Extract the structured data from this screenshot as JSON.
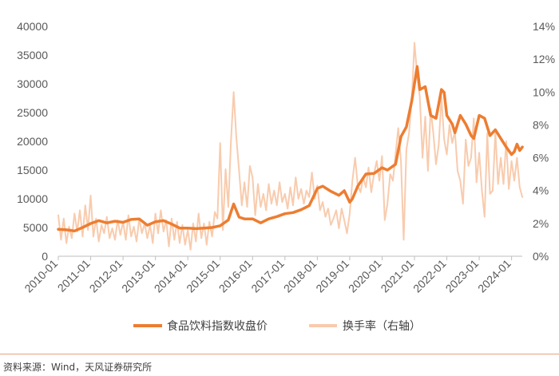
{
  "chart_data": {
    "type": "line",
    "title": "",
    "x": [
      "2010-01",
      "2011-01",
      "2012-01",
      "2013-01",
      "2014-01",
      "2015-01",
      "2016-01",
      "2017-01",
      "2018-01",
      "2019-01",
      "2020-01",
      "2021-01",
      "2022-01",
      "2023-01",
      "2024-01"
    ],
    "x_tick_labels": [
      "2010-01",
      "2011-01",
      "2012-01",
      "2013-01",
      "2014-01",
      "2015-01",
      "2016-01",
      "2017-01",
      "2018-01",
      "2019-01",
      "2020-01",
      "2021-01",
      "2022-01",
      "2023-01",
      "2024-01"
    ],
    "left_axis": {
      "ylim": [
        0,
        40000
      ],
      "ticks": [
        "0",
        "5000",
        "10000",
        "15000",
        "20000",
        "25000",
        "30000",
        "35000",
        "40000"
      ]
    },
    "right_axis": {
      "ylim": [
        0,
        14
      ],
      "ticks": [
        "0%",
        "2%",
        "4%",
        "6%",
        "8%",
        "10%",
        "12%",
        "14%"
      ]
    },
    "series": [
      {
        "name": "食品饮料指数收盘价",
        "axis": "left",
        "color": "#ed7d31",
        "points": [
          [
            "2010-01",
            4700
          ],
          [
            "2010-04",
            4600
          ],
          [
            "2010-07",
            4400
          ],
          [
            "2010-10",
            5000
          ],
          [
            "2011-01",
            5700
          ],
          [
            "2011-04",
            6200
          ],
          [
            "2011-07",
            5800
          ],
          [
            "2011-10",
            6100
          ],
          [
            "2012-01",
            5900
          ],
          [
            "2012-04",
            6400
          ],
          [
            "2012-07",
            6500
          ],
          [
            "2012-10",
            5400
          ],
          [
            "2013-01",
            6000
          ],
          [
            "2013-04",
            6200
          ],
          [
            "2013-07",
            5600
          ],
          [
            "2013-10",
            4900
          ],
          [
            "2014-01",
            4900
          ],
          [
            "2014-04",
            4800
          ],
          [
            "2014-07",
            4900
          ],
          [
            "2014-10",
            5000
          ],
          [
            "2015-01",
            5300
          ],
          [
            "2015-04",
            6300
          ],
          [
            "2015-06",
            9100
          ],
          [
            "2015-08",
            6800
          ],
          [
            "2015-10",
            6500
          ],
          [
            "2016-01",
            6500
          ],
          [
            "2016-04",
            5800
          ],
          [
            "2016-07",
            6500
          ],
          [
            "2016-10",
            6900
          ],
          [
            "2017-01",
            7400
          ],
          [
            "2017-04",
            7600
          ],
          [
            "2017-07",
            8100
          ],
          [
            "2017-10",
            8800
          ],
          [
            "2018-01",
            11800
          ],
          [
            "2018-03",
            12200
          ],
          [
            "2018-06",
            11300
          ],
          [
            "2018-09",
            10600
          ],
          [
            "2018-11",
            11400
          ],
          [
            "2019-01",
            9400
          ],
          [
            "2019-02",
            10000
          ],
          [
            "2019-04",
            12200
          ],
          [
            "2019-07",
            14300
          ],
          [
            "2019-10",
            14400
          ],
          [
            "2020-01",
            15400
          ],
          [
            "2020-03",
            15000
          ],
          [
            "2020-06",
            16000
          ],
          [
            "2020-08",
            20800
          ],
          [
            "2020-10",
            22500
          ],
          [
            "2020-12",
            27000
          ],
          [
            "2021-02",
            33000
          ],
          [
            "2021-03",
            29000
          ],
          [
            "2021-05",
            29500
          ],
          [
            "2021-07",
            24500
          ],
          [
            "2021-09",
            24000
          ],
          [
            "2021-11",
            29000
          ],
          [
            "2021-12",
            28500
          ],
          [
            "2022-01",
            24500
          ],
          [
            "2022-03",
            23000
          ],
          [
            "2022-04",
            21500
          ],
          [
            "2022-06",
            24500
          ],
          [
            "2022-08",
            23000
          ],
          [
            "2022-10",
            21000
          ],
          [
            "2022-11",
            20500
          ],
          [
            "2023-01",
            24500
          ],
          [
            "2023-03",
            24000
          ],
          [
            "2023-05",
            21000
          ],
          [
            "2023-07",
            22000
          ],
          [
            "2023-09",
            20500
          ],
          [
            "2023-11",
            19000
          ],
          [
            "2024-01",
            17700
          ],
          [
            "2024-02",
            18200
          ],
          [
            "2024-03",
            19500
          ],
          [
            "2024-04",
            18400
          ],
          [
            "2024-05",
            19000
          ]
        ]
      },
      {
        "name": "换手率（右轴）",
        "axis": "right",
        "unit": "%",
        "color": "#f8cbad",
        "points": [
          [
            "2010-01",
            2.5
          ],
          [
            "2010-02",
            1.0
          ],
          [
            "2010-03",
            2.3
          ],
          [
            "2010-04",
            0.8
          ],
          [
            "2010-05",
            1.8
          ],
          [
            "2010-06",
            1.1
          ],
          [
            "2010-07",
            2.6
          ],
          [
            "2010-08",
            1.5
          ],
          [
            "2010-09",
            2.8
          ],
          [
            "2010-10",
            1.2
          ],
          [
            "2010-11",
            3.1
          ],
          [
            "2010-12",
            1.6
          ],
          [
            "2011-01",
            3.7
          ],
          [
            "2011-02",
            1.2
          ],
          [
            "2011-03",
            2.3
          ],
          [
            "2011-04",
            0.9
          ],
          [
            "2011-05",
            1.9
          ],
          [
            "2011-06",
            1.4
          ],
          [
            "2011-07",
            2.4
          ],
          [
            "2011-08",
            1.1
          ],
          [
            "2011-09",
            1.7
          ],
          [
            "2011-10",
            1.0
          ],
          [
            "2011-11",
            2.2
          ],
          [
            "2011-12",
            1.3
          ],
          [
            "2012-01",
            2.1
          ],
          [
            "2012-02",
            1.0
          ],
          [
            "2012-03",
            2.5
          ],
          [
            "2012-04",
            1.2
          ],
          [
            "2012-05",
            1.8
          ],
          [
            "2012-06",
            0.9
          ],
          [
            "2012-07",
            2.3
          ],
          [
            "2012-08",
            1.4
          ],
          [
            "2012-09",
            2.0
          ],
          [
            "2012-10",
            1.1
          ],
          [
            "2012-11",
            1.9
          ],
          [
            "2012-12",
            0.8
          ],
          [
            "2013-01",
            2.6
          ],
          [
            "2013-02",
            1.4
          ],
          [
            "2013-03",
            2.8
          ],
          [
            "2013-04",
            1.5
          ],
          [
            "2013-05",
            2.2
          ],
          [
            "2013-06",
            0.6
          ],
          [
            "2013-07",
            2.3
          ],
          [
            "2013-08",
            1.0
          ],
          [
            "2013-09",
            2.1
          ],
          [
            "2013-10",
            0.8
          ],
          [
            "2013-11",
            1.9
          ],
          [
            "2013-12",
            0.7
          ],
          [
            "2014-01",
            1.6
          ],
          [
            "2014-02",
            0.4
          ],
          [
            "2014-03",
            2.0
          ],
          [
            "2014-04",
            0.9
          ],
          [
            "2014-05",
            2.6
          ],
          [
            "2014-06",
            1.1
          ],
          [
            "2014-07",
            2.0
          ],
          [
            "2014-08",
            0.7
          ],
          [
            "2014-09",
            2.1
          ],
          [
            "2014-10",
            1.2
          ],
          [
            "2014-11",
            2.7
          ],
          [
            "2014-12",
            2.3
          ],
          [
            "2015-01",
            6.9
          ],
          [
            "2015-02",
            1.6
          ],
          [
            "2015-03",
            5.3
          ],
          [
            "2015-04",
            3.0
          ],
          [
            "2015-05",
            7.0
          ],
          [
            "2015-06",
            10.0
          ],
          [
            "2015-07",
            7.2
          ],
          [
            "2015-08",
            5.2
          ],
          [
            "2015-09",
            3.1
          ],
          [
            "2015-10",
            4.5
          ],
          [
            "2015-11",
            3.0
          ],
          [
            "2015-12",
            5.5
          ],
          [
            "2016-01",
            4.8
          ],
          [
            "2016-02",
            2.5
          ],
          [
            "2016-03",
            4.4
          ],
          [
            "2016-04",
            3.0
          ],
          [
            "2016-05",
            3.8
          ],
          [
            "2016-06",
            2.8
          ],
          [
            "2016-07",
            4.4
          ],
          [
            "2016-08",
            3.2
          ],
          [
            "2016-09",
            4.0
          ],
          [
            "2016-10",
            3.1
          ],
          [
            "2016-11",
            4.5
          ],
          [
            "2016-12",
            3.3
          ],
          [
            "2017-01",
            3.8
          ],
          [
            "2017-02",
            2.9
          ],
          [
            "2017-03",
            4.2
          ],
          [
            "2017-04",
            3.1
          ],
          [
            "2017-05",
            4.8
          ],
          [
            "2017-06",
            3.5
          ],
          [
            "2017-07",
            4.1
          ],
          [
            "2017-08",
            3.2
          ],
          [
            "2017-09",
            4.0
          ],
          [
            "2017-10",
            3.6
          ],
          [
            "2017-11",
            5.1
          ],
          [
            "2017-12",
            3.5
          ],
          [
            "2018-01",
            4.3
          ],
          [
            "2018-02",
            2.8
          ],
          [
            "2018-03",
            3.3
          ],
          [
            "2018-04",
            2.4
          ],
          [
            "2018-05",
            2.9
          ],
          [
            "2018-06",
            1.9
          ],
          [
            "2018-07",
            2.3
          ],
          [
            "2018-08",
            2.8
          ],
          [
            "2018-09",
            1.7
          ],
          [
            "2018-10",
            2.9
          ],
          [
            "2018-11",
            2.2
          ],
          [
            "2018-12",
            1.4
          ],
          [
            "2019-01",
            2.6
          ],
          [
            "2019-02",
            4.6
          ],
          [
            "2019-03",
            6.0
          ],
          [
            "2019-04",
            4.3
          ],
          [
            "2019-05",
            3.9
          ],
          [
            "2019-06",
            4.8
          ],
          [
            "2019-07",
            4.2
          ],
          [
            "2019-08",
            5.4
          ],
          [
            "2019-09",
            3.9
          ],
          [
            "2019-10",
            5.0
          ],
          [
            "2019-11",
            5.8
          ],
          [
            "2019-12",
            4.6
          ],
          [
            "2020-01",
            6.1
          ],
          [
            "2020-02",
            2.2
          ],
          [
            "2020-03",
            3.2
          ],
          [
            "2020-04",
            5.0
          ],
          [
            "2020-05",
            4.6
          ],
          [
            "2020-06",
            6.2
          ],
          [
            "2020-07",
            7.8
          ],
          [
            "2020-08",
            5.8
          ],
          [
            "2020-09",
            1.0
          ],
          [
            "2020-10",
            6.5
          ],
          [
            "2020-11",
            7.5
          ],
          [
            "2020-12",
            9.5
          ],
          [
            "2021-01",
            13.0
          ],
          [
            "2021-02",
            11.0
          ],
          [
            "2021-03",
            9.7
          ],
          [
            "2021-04",
            6.0
          ],
          [
            "2021-05",
            8.5
          ],
          [
            "2021-06",
            5.2
          ],
          [
            "2021-07",
            9.0
          ],
          [
            "2021-08",
            7.5
          ],
          [
            "2021-09",
            5.6
          ],
          [
            "2021-10",
            6.8
          ],
          [
            "2021-11",
            9.7
          ],
          [
            "2021-12",
            7.1
          ],
          [
            "2022-01",
            6.2
          ],
          [
            "2022-02",
            8.0
          ],
          [
            "2022-03",
            6.9
          ],
          [
            "2022-04",
            7.6
          ],
          [
            "2022-05",
            5.2
          ],
          [
            "2022-06",
            4.6
          ],
          [
            "2022-07",
            3.2
          ],
          [
            "2022-08",
            7.1
          ],
          [
            "2022-09",
            5.5
          ],
          [
            "2022-10",
            6.0
          ],
          [
            "2022-11",
            8.4
          ],
          [
            "2022-12",
            4.5
          ],
          [
            "2023-01",
            6.3
          ],
          [
            "2023-02",
            4.0
          ],
          [
            "2023-03",
            2.4
          ],
          [
            "2023-04",
            7.5
          ],
          [
            "2023-05",
            3.8
          ],
          [
            "2023-06",
            4.0
          ],
          [
            "2023-07",
            7.6
          ],
          [
            "2023-08",
            4.4
          ],
          [
            "2023-09",
            6.0
          ],
          [
            "2023-10",
            4.4
          ],
          [
            "2023-11",
            7.0
          ],
          [
            "2023-12",
            4.1
          ],
          [
            "2024-01",
            5.8
          ],
          [
            "2024-02",
            4.6
          ],
          [
            "2024-03",
            6.0
          ],
          [
            "2024-04",
            4.2
          ],
          [
            "2024-05",
            3.6
          ]
        ]
      }
    ],
    "legend": {
      "position": "bottom"
    }
  },
  "source": "资料来源：Wind，天风证券研究所"
}
